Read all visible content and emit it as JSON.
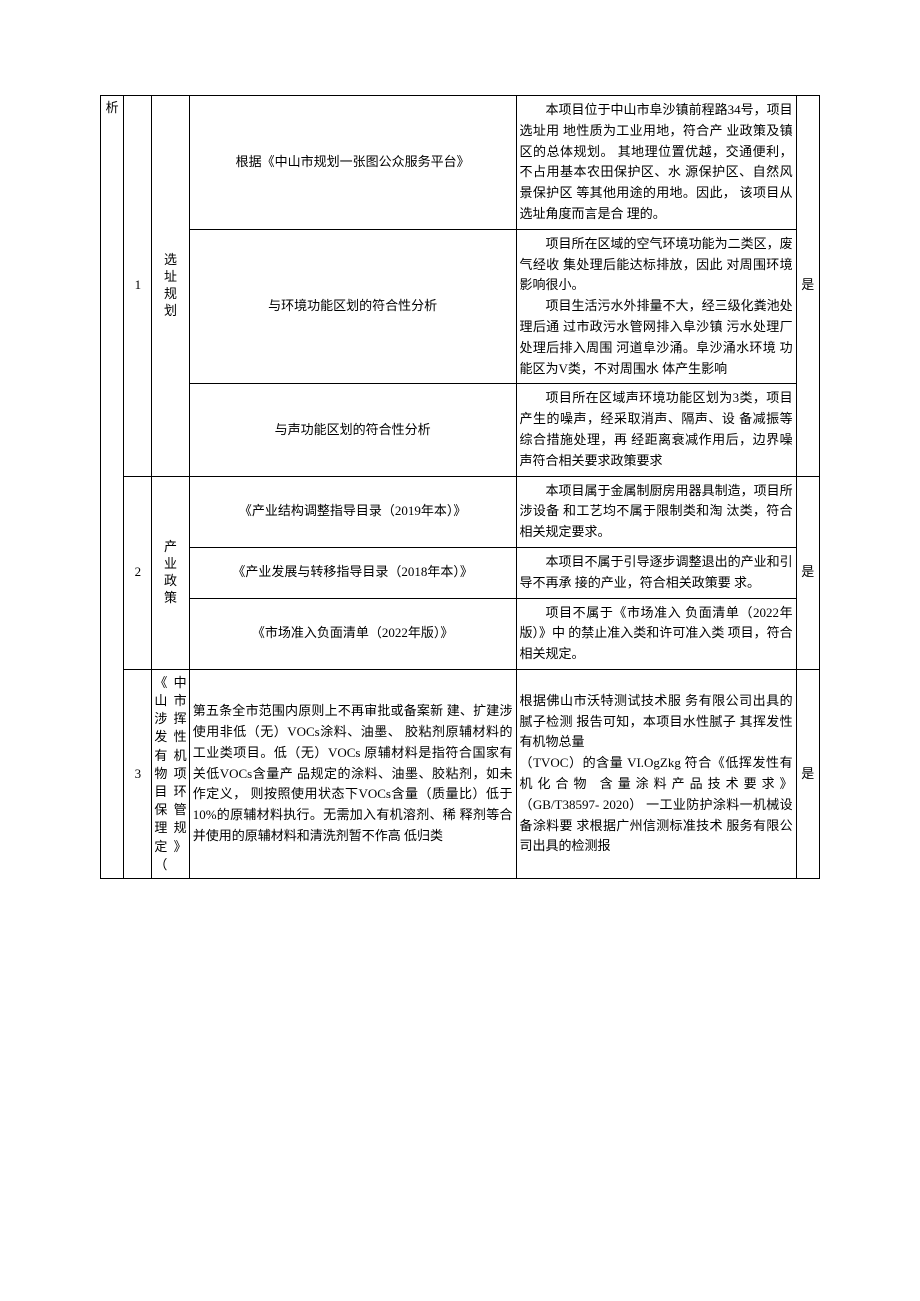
{
  "header_col": "析",
  "rows": [
    {
      "num": "1",
      "category": "选址规划",
      "result": "是",
      "subrows": [
        {
          "basis": "根据《中山市规划一张图公众服务平台》",
          "analysis_paragraphs": [
            "本项目位于中山市阜沙镇前程路34号，项目选址用 地性质为工业用地，符合产 业政策及镇区的总体规划。 其地理位置优越，交通便利， 不占用基本农田保护区、水 源保护区、自然风景保护区 等其他用途的用地。因此，  该项目从选址角度而言是合 理的。"
          ]
        },
        {
          "basis": "与环境功能区划的符合性分析",
          "analysis_paragraphs": [
            "项目所在区域的空气环境功能为二类区，废气经收 集处理后能达标排放，因此 对周围环境影响很小。",
            "项目生活污水外排量不大，经三级化粪池处理后通 过市政污水管网排入阜沙镇 污水处理厂处理后排入周围 河道阜沙涌。阜沙涌水环境 功能区为V类，不对周围水 体产生影响"
          ]
        },
        {
          "basis": "与声功能区划的符合性分析",
          "analysis_paragraphs": [
            "项目所在区域声环境功能区划为3类，项目产生的噪声，经采取消声、隔声、设      备减振等综合措施处理，再 经距离衰减作用后，边界噪 声符合相关要求政策要求"
          ]
        }
      ]
    },
    {
      "num": "2",
      "category": "产业政策",
      "result": "是",
      "subrows": [
        {
          "basis": "《产业结构调整指导目录（2019年本）》",
          "analysis_paragraphs": [
            "本项目属于金属制厨房用器具制造，项目所涉设备 和工艺均不属于限制类和淘      汰类，符合相关规定要求。"
          ]
        },
        {
          "basis": "《产业发展与转移指导目录（2018年本）》",
          "analysis_paragraphs": [
            "本项目不属于引导逐步调整退出的产业和引导不再承 接的产业，符合相关政策要   求。"
          ]
        },
        {
          "basis": "《市场准入负面清单（2022年版）》",
          "analysis_paragraphs": [
            "项目不属于《市场准入 负面清单（2022年版）》中 的禁止准入类和许可准入类 项目，符合相关规定。"
          ]
        }
      ]
    },
    {
      "num": "3",
      "category": "《中山市涉挥发性有机物项目环保管理规定》（",
      "result": "是",
      "subrows": [
        {
          "basis": "第五条全市范围内原则上不再审批或备案新 建、扩建涉使用非低（无）VOCs涂料、油墨、 胶粘剂原辅材料的工业类项目。低（无）VOCs 原辅材料是指符合国家有关低VOCs含量产 品规定的涂料、油墨、胶粘剂，如未作定义，  则按照使用状态下VOCs含量（质量比）低于 10%的原辅材料执行。无需加入有机溶剂、稀 释剂等合并使用的原辅材料和清洗剂暂不作高 低归类",
          "analysis_paragraphs": [
            "根据佛山市沃特测试技术服 务有限公司出具的腻子检测 报告可知，本项目水性腻子 其挥发性有机物总量",
            "（TVOC）的含量 VI.OgZkg 符合《低挥发性有机化合物 含量涂料产品技术要求》 （GB/T38597- 2020）    一工业防护涂料一机械设备涂料要 求根据广州信测标准技术 服务有限公司出具的检测报"
          ]
        }
      ]
    }
  ],
  "styling": {
    "border_color": "#000000",
    "background_color": "#ffffff",
    "text_color": "#000000",
    "font_family": "SimSun",
    "base_font_size": 13
  }
}
